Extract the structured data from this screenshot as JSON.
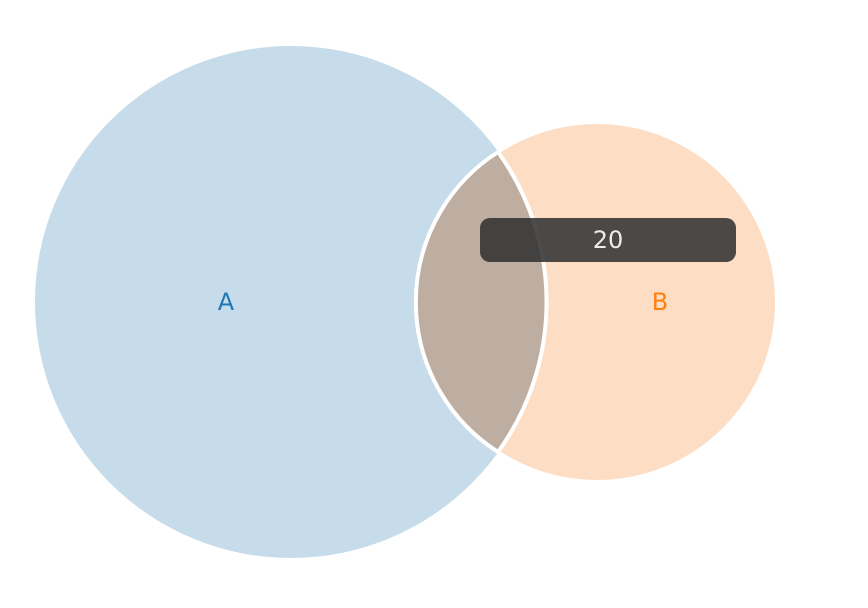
{
  "diagram": {
    "type": "venn",
    "sets": [
      {
        "label": "A",
        "fill": "#c6dcea",
        "label_color": "#1f77b4"
      },
      {
        "label": "B",
        "fill": "#fddec5",
        "label_color": "#ff7f0e"
      }
    ],
    "intersection": {
      "fill": "#bdaea1",
      "stroke": "#ffffff"
    },
    "tooltip": {
      "value": "20"
    }
  }
}
